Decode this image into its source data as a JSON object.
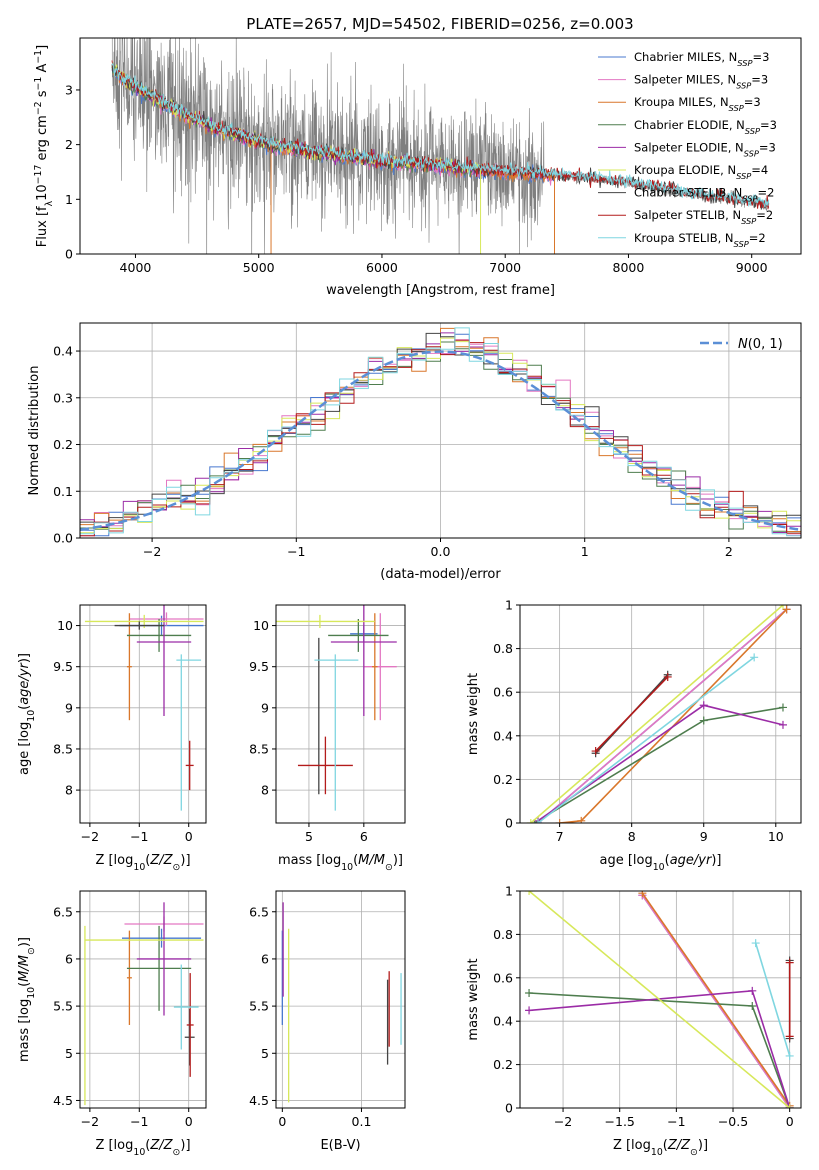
{
  "figure": {
    "title": "PLATE=2657, MJD=54502, FIBERID=0256, z=0.003",
    "colors": {
      "Chabrier MILES": "#4878cf",
      "Salpeter MILES": "#e377c2",
      "Kroupa MILES": "#d9772b",
      "Chabrier ELODIE": "#4e7d4e",
      "Salpeter ELODIE": "#9b2ca6",
      "Kroupa ELODIE": "#d7e85b",
      "Chabrier STELIB": "#444444",
      "Salpeter STELIB": "#b31b1b",
      "Kroupa STELIB": "#7fd6e0",
      "data": "#7f7f7f",
      "gauss": "#5b8fd6"
    }
  },
  "chart_data": [
    {
      "id": "spectrum",
      "type": "line",
      "xlabel": "wavelength [Angstrom, rest frame]",
      "ylabel": "Flux [f_λ10^-17 erg cm^-2 s^-1 A^-1]",
      "xlim": [
        3550,
        9400
      ],
      "ylim": [
        0,
        3.95
      ],
      "xticks": [
        4000,
        5000,
        6000,
        7000,
        8000,
        9000
      ],
      "yticks": [
        0,
        1,
        2,
        3
      ],
      "grid": false,
      "legend_position": "top-right",
      "legend": [
        {
          "model": "Chabrier MILES",
          "label": "Chabrier MILES, N",
          "sub": "SSP",
          "suffix": "=3"
        },
        {
          "model": "Salpeter MILES",
          "label": "Salpeter MILES, N",
          "sub": "SSP",
          "suffix": "=3"
        },
        {
          "model": "Kroupa MILES",
          "label": "Kroupa MILES, N",
          "sub": "SSP",
          "suffix": "=3"
        },
        {
          "model": "Chabrier ELODIE",
          "label": "Chabrier ELODIE, N",
          "sub": "SSP",
          "suffix": "=3"
        },
        {
          "model": "Salpeter ELODIE",
          "label": "Salpeter ELODIE, N",
          "sub": "SSP",
          "suffix": "=3"
        },
        {
          "model": "Kroupa ELODIE",
          "label": "Kroupa ELODIE, N",
          "sub": "SSP",
          "suffix": "=4"
        },
        {
          "model": "Chabrier STELIB",
          "label": "Chabrier STELIB, N",
          "sub": "SSP",
          "suffix": "=2"
        },
        {
          "model": "Salpeter STELIB",
          "label": "Salpeter STELIB, N",
          "sub": "SSP",
          "suffix": "=2"
        },
        {
          "model": "Kroupa STELIB",
          "label": "Kroupa STELIB, N",
          "sub": "SSP",
          "suffix": "=2"
        }
      ],
      "continuum": [
        [
          3810,
          3.4
        ],
        [
          3900,
          3.2
        ],
        [
          4000,
          3.05
        ],
        [
          4200,
          2.8
        ],
        [
          4400,
          2.55
        ],
        [
          4600,
          2.35
        ],
        [
          4800,
          2.2
        ],
        [
          5000,
          2.05
        ],
        [
          5200,
          1.95
        ],
        [
          5500,
          1.85
        ],
        [
          6000,
          1.7
        ],
        [
          6500,
          1.6
        ],
        [
          7000,
          1.5
        ],
        [
          7500,
          1.42
        ],
        [
          8000,
          1.3
        ],
        [
          8500,
          1.1
        ],
        [
          9000,
          0.95
        ],
        [
          9140,
          0.88
        ]
      ],
      "model_ranges": {
        "Chabrier MILES": [
          3810,
          7400
        ],
        "Salpeter MILES": [
          3810,
          7400
        ],
        "Kroupa MILES": [
          3810,
          7400
        ],
        "Chabrier ELODIE": [
          3810,
          6800
        ],
        "Salpeter ELODIE": [
          3810,
          6800
        ],
        "Kroupa ELODIE": [
          3810,
          6800
        ],
        "Chabrier STELIB": [
          3810,
          9140
        ],
        "Salpeter STELIB": [
          3810,
          9140
        ],
        "Kroupa STELIB": [
          3810,
          9140
        ]
      }
    },
    {
      "id": "residuals",
      "type": "step",
      "xlabel": "(data-model)/error",
      "ylabel": "Normed distribution",
      "xlim": [
        -2.5,
        2.5
      ],
      "ylim": [
        0,
        0.46
      ],
      "xticks": [
        -2,
        -1,
        0,
        1,
        2
      ],
      "yticks": [
        0.0,
        0.1,
        0.2,
        0.3,
        0.4
      ],
      "grid": true,
      "bin_width": 0.1,
      "legend_position": "top-right",
      "gauss_label": "N(0,1)"
    },
    {
      "id": "age-vs-z",
      "type": "errorbar",
      "xlabel": "Z [log10(Z/Z⊙)]",
      "ylabel": "age [log10(age/yr)]",
      "xlim": [
        -2.2,
        0.35
      ],
      "ylim": [
        7.6,
        10.25
      ],
      "xticks": [
        -2,
        -1,
        0
      ],
      "yticks": [
        8.0,
        8.5,
        9.0,
        9.5,
        10.0
      ],
      "grid": true,
      "points": [
        {
          "model": "Chabrier MILES",
          "x": -0.55,
          "xerr": 0.85,
          "y": 10.0,
          "yerr": 0.12
        },
        {
          "model": "Salpeter MILES",
          "x": -0.45,
          "xerr": 0.75,
          "y": 10.08,
          "yerr": 0.08
        },
        {
          "model": "Kroupa MILES",
          "x": -1.2,
          "xerr": 0.05,
          "y": 9.5,
          "yerr": 0.65
        },
        {
          "model": "Chabrier ELODIE",
          "x": -0.6,
          "xerr": 0.65,
          "y": 9.88,
          "yerr": 0.2
        },
        {
          "model": "Salpeter ELODIE",
          "x": -0.5,
          "xerr": 0.55,
          "y": 9.8,
          "yerr": 0.9
        },
        {
          "model": "Kroupa ELODIE",
          "x": -0.9,
          "xerr": 1.2,
          "y": 10.05,
          "yerr": 0.08
        },
        {
          "model": "Chabrier STELIB",
          "x": -1.0,
          "xerr": 0.5,
          "y": 10.0,
          "yerr": 0.05
        },
        {
          "model": "Salpeter STELIB",
          "x": 0.02,
          "xerr": 0.08,
          "y": 8.3,
          "yerr": 0.3
        },
        {
          "model": "Kroupa STELIB",
          "x": 0.0,
          "xerr": 0.25,
          "y": 9.58,
          "yerr": 0.0
        },
        {
          "model": "Kroupa STELIB",
          "x": -0.15,
          "xerr": 0.0,
          "y": 8.7,
          "yerr": 0.95
        }
      ]
    },
    {
      "id": "age-vs-mass",
      "type": "errorbar",
      "xlabel": "mass [log10(M/M⊙)]",
      "ylabel": "",
      "xlim": [
        4.4,
        6.75
      ],
      "ylim": [
        7.6,
        10.25
      ],
      "xticks": [
        5,
        6
      ],
      "yticks": [
        8.0,
        8.5,
        9.0,
        9.5,
        10.0
      ],
      "grid": true,
      "points": [
        {
          "model": "Chabrier MILES",
          "x": 6.0,
          "xerr": 0.25,
          "y": 9.9,
          "yerr": 0.1
        },
        {
          "model": "Salpeter MILES",
          "x": 6.3,
          "xerr": 0.3,
          "y": 9.5,
          "yerr": 0.65
        },
        {
          "model": "Kroupa MILES",
          "x": 6.2,
          "xerr": 0.05,
          "y": 9.5,
          "yerr": 0.65
        },
        {
          "model": "Chabrier ELODIE",
          "x": 5.9,
          "xerr": 0.55,
          "y": 9.88,
          "yerr": 0.2
        },
        {
          "model": "Salpeter ELODIE",
          "x": 6.0,
          "xerr": 0.6,
          "y": 9.8,
          "yerr": 0.9
        },
        {
          "model": "Kroupa ELODIE",
          "x": 5.2,
          "xerr": 1.0,
          "y": 10.05,
          "yerr": 0.08
        },
        {
          "model": "Chabrier STELIB",
          "x": 5.18,
          "xerr": 0.0,
          "y": 8.9,
          "yerr": 0.95
        },
        {
          "model": "Salpeter STELIB",
          "x": 5.3,
          "xerr": 0.5,
          "y": 8.3,
          "yerr": 0.35
        },
        {
          "model": "Kroupa STELIB",
          "x": 5.5,
          "xerr": 0.4,
          "y": 9.58,
          "yerr": 0.0
        },
        {
          "model": "Kroupa STELIB",
          "x": 5.48,
          "xerr": 0.0,
          "y": 8.7,
          "yerr": 0.95
        }
      ]
    },
    {
      "id": "weight-vs-age",
      "type": "line",
      "xlabel": "age [log10(age/yr)]",
      "ylabel": "mass weight",
      "xlim": [
        6.45,
        10.35
      ],
      "ylim": [
        0,
        1.0
      ],
      "xticks": [
        7,
        8,
        9,
        10
      ],
      "yticks": [
        0.0,
        0.2,
        0.4,
        0.6,
        0.8,
        1.0
      ],
      "grid": true,
      "series": [
        {
          "model": "Chabrier MILES",
          "x": [
            6.7,
            10.15
          ],
          "y": [
            0.0,
            0.98
          ]
        },
        {
          "model": "Salpeter MILES",
          "x": [
            6.7,
            10.15
          ],
          "y": [
            0.0,
            0.98
          ]
        },
        {
          "model": "Kroupa MILES",
          "x": [
            7.0,
            7.3,
            10.15
          ],
          "y": [
            0.0,
            0.01,
            0.98
          ]
        },
        {
          "model": "Chabrier ELODIE",
          "x": [
            6.65,
            9.0,
            10.1
          ],
          "y": [
            0.0,
            0.47,
            0.53
          ]
        },
        {
          "model": "Salpeter ELODIE",
          "x": [
            6.7,
            9.0,
            10.1
          ],
          "y": [
            0.01,
            0.54,
            0.45
          ]
        },
        {
          "model": "Kroupa ELODIE",
          "x": [
            6.6,
            10.1
          ],
          "y": [
            0.0,
            1.0
          ]
        },
        {
          "model": "Chabrier STELIB",
          "x": [
            7.5,
            8.5
          ],
          "y": [
            0.32,
            0.68
          ]
        },
        {
          "model": "Salpeter STELIB",
          "x": [
            7.5,
            8.5
          ],
          "y": [
            0.33,
            0.67
          ]
        },
        {
          "model": "Kroupa STELIB",
          "x": [
            6.7,
            9.7
          ],
          "y": [
            0.0,
            0.76
          ]
        }
      ]
    },
    {
      "id": "mass-vs-z",
      "type": "errorbar",
      "xlabel": "Z [log10(Z/Z⊙)]",
      "ylabel": "mass [log10(M/M⊙)]",
      "xlim": [
        -2.2,
        0.35
      ],
      "ylim": [
        4.42,
        6.72
      ],
      "xticks": [
        -2,
        -1,
        0
      ],
      "yticks": [
        4.5,
        5.0,
        5.5,
        6.0,
        6.5
      ],
      "grid": true,
      "points": [
        {
          "model": "Chabrier MILES",
          "x": -0.55,
          "xerr": 0.8,
          "y": 6.22,
          "yerr": 0.1
        },
        {
          "model": "Salpeter MILES",
          "x": -0.5,
          "xerr": 0.8,
          "y": 6.37,
          "yerr": 0.08
        },
        {
          "model": "Kroupa MILES",
          "x": -1.2,
          "xerr": 0.05,
          "y": 5.8,
          "yerr": 0.5
        },
        {
          "model": "Chabrier ELODIE",
          "x": -0.6,
          "xerr": 0.65,
          "y": 5.9,
          "yerr": 0.45
        },
        {
          "model": "Salpeter ELODIE",
          "x": -0.5,
          "xerr": 0.55,
          "y": 6.0,
          "yerr": 0.6
        },
        {
          "model": "Kroupa ELODIE",
          "x": -0.9,
          "xerr": 1.2,
          "y": 6.2,
          "yerr": 0.0
        },
        {
          "model": "Kroupa ELODIE",
          "x": -2.1,
          "xerr": 0.0,
          "y": 5.4,
          "yerr": 0.95
        },
        {
          "model": "Chabrier STELIB",
          "x": 0.02,
          "xerr": 0.1,
          "y": 5.17,
          "yerr": 0.3
        },
        {
          "model": "Salpeter STELIB",
          "x": 0.03,
          "xerr": 0.07,
          "y": 5.3,
          "yerr": 0.55
        },
        {
          "model": "Kroupa STELIB",
          "x": -0.05,
          "xerr": 0.25,
          "y": 5.49,
          "yerr": 0.0
        },
        {
          "model": "Kroupa STELIB",
          "x": -0.15,
          "xerr": 0.0,
          "y": 5.49,
          "yerr": 0.45
        }
      ]
    },
    {
      "id": "mass-vs-ebv",
      "type": "errorbar",
      "xlabel": "E(B-V)",
      "ylabel": "",
      "xlim": [
        -0.008,
        0.155
      ],
      "ylim": [
        4.42,
        6.72
      ],
      "xticks": [
        0.0,
        0.1
      ],
      "yticks": [
        4.5,
        5.0,
        5.5,
        6.0,
        6.5
      ],
      "grid": true,
      "points": [
        {
          "model": "Chabrier MILES",
          "x": 0.0,
          "xerr": 0,
          "y": 5.8,
          "yerr": 0.5
        },
        {
          "model": "Salpeter ELODIE",
          "x": 0.001,
          "xerr": 0,
          "y": 6.1,
          "yerr": 0.5
        },
        {
          "model": "Kroupa ELODIE",
          "x": 0.008,
          "xerr": 0,
          "y": 5.4,
          "yerr": 0.92
        },
        {
          "model": "Chabrier STELIB",
          "x": 0.133,
          "xerr": 0,
          "y": 5.33,
          "yerr": 0.45
        },
        {
          "model": "Salpeter STELIB",
          "x": 0.135,
          "xerr": 0,
          "y": 5.47,
          "yerr": 0.4
        },
        {
          "model": "Kroupa STELIB",
          "x": 0.15,
          "xerr": 0,
          "y": 5.47,
          "yerr": 0.38
        }
      ]
    },
    {
      "id": "weight-vs-z",
      "type": "line",
      "xlabel": "Z [log10(Z/Z⊙)]",
      "ylabel": "mass weight",
      "xlim": [
        -2.38,
        0.1
      ],
      "ylim": [
        0,
        1.0
      ],
      "xticks": [
        -2.0,
        -1.5,
        -1.0,
        -0.5,
        0.0
      ],
      "yticks": [
        0.0,
        0.2,
        0.4,
        0.6,
        0.8,
        1.0
      ],
      "grid": true,
      "series": [
        {
          "model": "Chabrier MILES",
          "x": [
            -1.3,
            0.0
          ],
          "y": [
            0.98,
            0.0
          ]
        },
        {
          "model": "Salpeter MILES",
          "x": [
            -1.3,
            0.0
          ],
          "y": [
            0.98,
            0.0
          ]
        },
        {
          "model": "Kroupa MILES",
          "x": [
            -1.3,
            0.0
          ],
          "y": [
            0.99,
            0.01
          ]
        },
        {
          "model": "Chabrier ELODIE",
          "x": [
            -2.3,
            -0.33,
            0.0
          ],
          "y": [
            0.53,
            0.47,
            0.0
          ]
        },
        {
          "model": "Salpeter ELODIE",
          "x": [
            -2.3,
            -0.33,
            0.0
          ],
          "y": [
            0.45,
            0.54,
            0.0
          ]
        },
        {
          "model": "Kroupa ELODIE",
          "x": [
            -2.3,
            0.0
          ],
          "y": [
            1.0,
            0.0
          ]
        },
        {
          "model": "Chabrier STELIB",
          "x": [
            0.0,
            0.0
          ],
          "y": [
            0.32,
            0.68
          ]
        },
        {
          "model": "Salpeter STELIB",
          "x": [
            0.0,
            0.0
          ],
          "y": [
            0.33,
            0.67
          ]
        },
        {
          "model": "Kroupa STELIB",
          "x": [
            -0.3,
            0.0
          ],
          "y": [
            0.76,
            0.24
          ]
        }
      ]
    }
  ]
}
